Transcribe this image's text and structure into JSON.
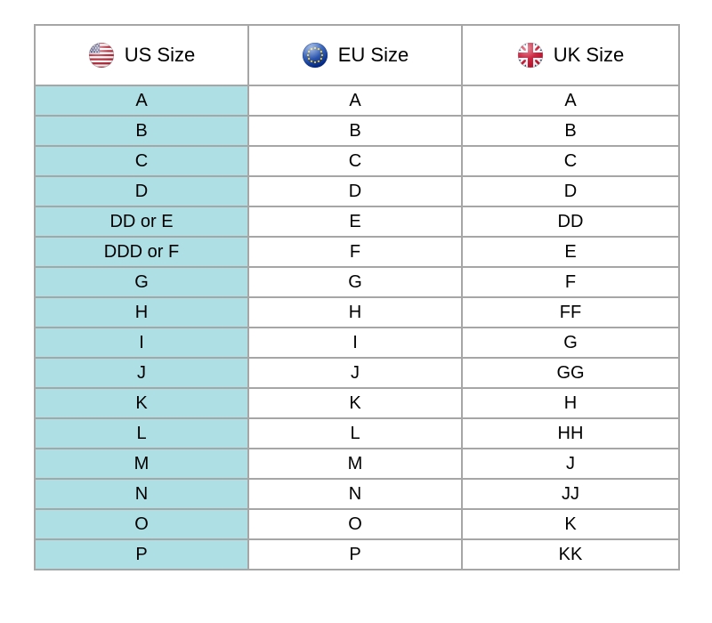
{
  "colors": {
    "border": "#a6a6a6",
    "us_column_background": "#addfe5",
    "text": "#000000",
    "background": "#ffffff",
    "flag_us_canton": "#3c3b6e",
    "flag_stripe_red": "#b22234",
    "flag_eu_blue": "#003399",
    "flag_eu_star_yellow": "#ffcc00",
    "flag_uk_blue": "#012169",
    "flag_uk_red": "#c8102e"
  },
  "table": {
    "columns": [
      {
        "label": "US Size",
        "icon": "us-flag-icon"
      },
      {
        "label": "EU Size",
        "icon": "eu-flag-icon"
      },
      {
        "label": "UK Size",
        "icon": "uk-flag-icon"
      }
    ],
    "rows": [
      {
        "us": "A",
        "eu": "A",
        "uk": "A"
      },
      {
        "us": "B",
        "eu": "B",
        "uk": "B"
      },
      {
        "us": "C",
        "eu": "C",
        "uk": "C"
      },
      {
        "us": "D",
        "eu": "D",
        "uk": "D"
      },
      {
        "us": "DD or E",
        "eu": "E",
        "uk": "DD"
      },
      {
        "us": "DDD or F",
        "eu": "F",
        "uk": "E"
      },
      {
        "us": "G",
        "eu": "G",
        "uk": "F"
      },
      {
        "us": "H",
        "eu": "H",
        "uk": "FF"
      },
      {
        "us": "I",
        "eu": "I",
        "uk": "G"
      },
      {
        "us": "J",
        "eu": "J",
        "uk": "GG"
      },
      {
        "us": "K",
        "eu": "K",
        "uk": "H"
      },
      {
        "us": "L",
        "eu": "L",
        "uk": "HH"
      },
      {
        "us": "M",
        "eu": "M",
        "uk": "J"
      },
      {
        "us": "N",
        "eu": "N",
        "uk": "JJ"
      },
      {
        "us": "O",
        "eu": "O",
        "uk": "K"
      },
      {
        "us": "P",
        "eu": "P",
        "uk": "KK"
      }
    ]
  }
}
